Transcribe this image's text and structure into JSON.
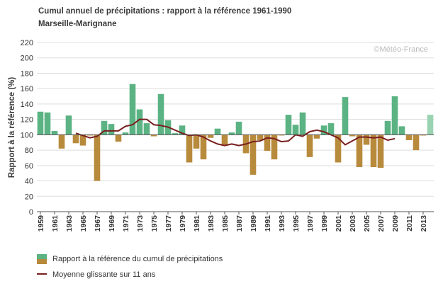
{
  "colors": {
    "above": "#5bb383",
    "below": "#b88a3c",
    "provisional": "#9ad3b2",
    "moving_average": "#7a1f1f",
    "grid": "#dddddd",
    "axis_text": "#333333"
  },
  "chart_data": {
    "type": "bar",
    "title": "Cumul annuel de précipitations : rapport à la référence 1961-1990",
    "subtitle": "Marseille-Marignane",
    "ylabel": "Rapport à la référence (%)",
    "xlabel": "",
    "ylim": [
      0,
      220
    ],
    "yticks": [
      0,
      20,
      40,
      60,
      80,
      100,
      120,
      140,
      160,
      180,
      200,
      220
    ],
    "baseline": 100,
    "grid": true,
    "watermark": "©Météo-France",
    "legend_position": "bottom-left",
    "categories": [
      1959,
      1960,
      1961,
      1962,
      1963,
      1964,
      1965,
      1966,
      1967,
      1968,
      1969,
      1970,
      1971,
      1972,
      1973,
      1974,
      1975,
      1976,
      1977,
      1978,
      1979,
      1980,
      1981,
      1982,
      1983,
      1984,
      1985,
      1986,
      1987,
      1988,
      1989,
      1990,
      1991,
      1992,
      1993,
      1994,
      1995,
      1996,
      1997,
      1998,
      1999,
      2000,
      2001,
      2002,
      2003,
      2004,
      2005,
      2006,
      2007,
      2008,
      2009,
      2010,
      2011,
      2012,
      2013,
      2014
    ],
    "xtick_labels": [
      "1959",
      "1961",
      "1963",
      "1965",
      "1967",
      "1969",
      "1971",
      "1973",
      "1975",
      "1977",
      "1979",
      "1981",
      "1983",
      "1985",
      "1987",
      "1989",
      "1991",
      "1993",
      "1995",
      "1997",
      "1999",
      "2001",
      "2003",
      "2005",
      "2007",
      "2009",
      "2011",
      "2013"
    ],
    "series": [
      {
        "name": "Rapport à la référence du cumul de précipitations",
        "kind": "bar",
        "values": [
          130,
          129,
          105,
          82,
          125,
          89,
          86,
          99,
          40,
          118,
          114,
          91,
          103,
          166,
          133,
          115,
          98,
          153,
          119,
          102,
          112,
          64,
          82,
          68,
          96,
          108,
          86,
          103,
          117,
          76,
          48,
          93,
          79,
          68,
          99,
          126,
          113,
          129,
          71,
          95,
          112,
          115,
          64,
          149,
          98,
          58,
          87,
          58,
          57,
          118,
          150,
          111,
          93,
          80,
          99,
          126
        ],
        "provisional_last": true
      },
      {
        "name": "Moyenne glissante sur 11 ans",
        "kind": "line",
        "x": [
          1964,
          1965,
          1966,
          1967,
          1968,
          1969,
          1970,
          1971,
          1972,
          1973,
          1974,
          1975,
          1976,
          1977,
          1978,
          1979,
          1980,
          1981,
          1982,
          1983,
          1984,
          1985,
          1986,
          1987,
          1988,
          1989,
          1990,
          1991,
          1992,
          1993,
          1994,
          1995,
          1996,
          1997,
          1998,
          1999,
          2000,
          2001,
          2002,
          2003,
          2004,
          2005,
          2006,
          2007,
          2008,
          2009
        ],
        "values": [
          102,
          99,
          96,
          98,
          105,
          105,
          105,
          111,
          113,
          120,
          120,
          113,
          112,
          110,
          106,
          102,
          99,
          100,
          97,
          92,
          88,
          86,
          88,
          86,
          88,
          91,
          92,
          96,
          95,
          91,
          92,
          100,
          98,
          104,
          106,
          104,
          100,
          96,
          87,
          92,
          97,
          97,
          96,
          97,
          93,
          95
        ]
      }
    ]
  }
}
